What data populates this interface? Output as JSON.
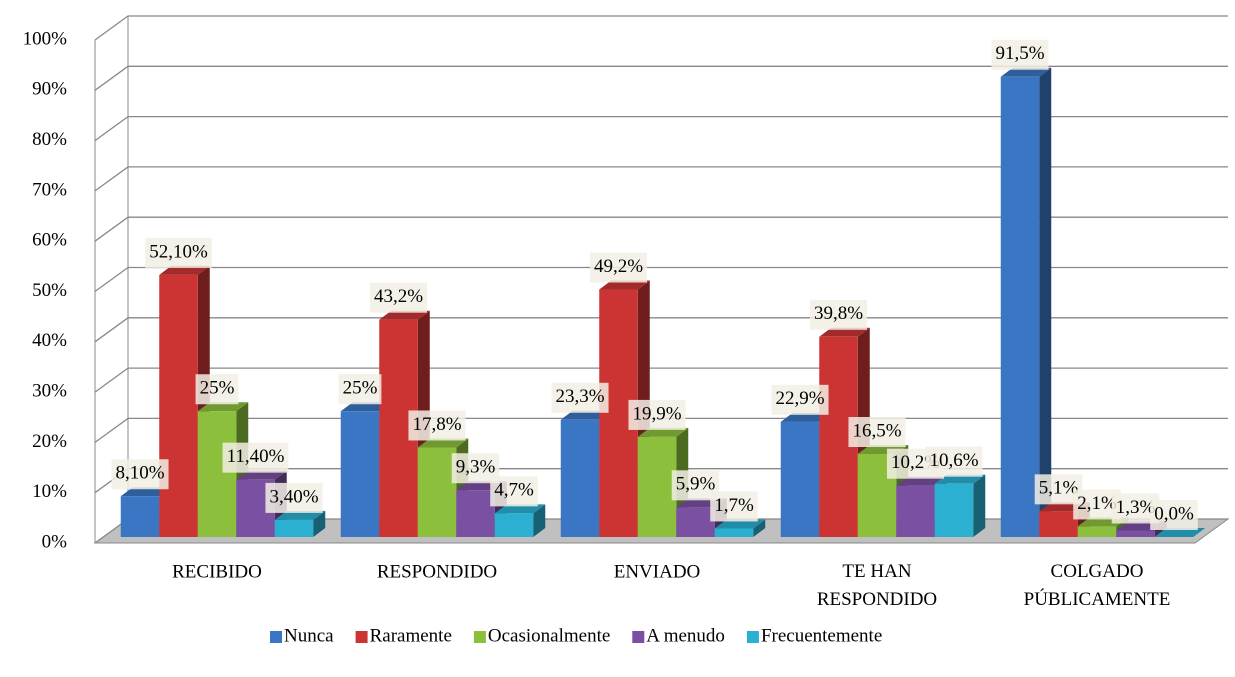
{
  "chart_data": {
    "type": "bar3d",
    "categories": [
      "RECIBIDO",
      "RESPONDIDO",
      "ENVIADO",
      "TE HAN RESPONDIDO",
      "COLGADO PÚBLICAMENTE"
    ],
    "series": [
      {
        "name": "Nunca",
        "color": "#3b76c4",
        "values": [
          8.1,
          25,
          23.3,
          22.9,
          91.5
        ],
        "value_labels": [
          "8,10%",
          "25%",
          "23,3%",
          "22,9%",
          "91,5%"
        ]
      },
      {
        "name": "Raramente",
        "color": "#cc3434",
        "values": [
          52.1,
          43.2,
          49.2,
          39.8,
          5.1
        ],
        "value_labels": [
          "52,10%",
          "43,2%",
          "49,2%",
          "39,8%",
          "5,1%"
        ]
      },
      {
        "name": "Ocasionalmente",
        "color": "#8cc03c",
        "values": [
          25,
          17.8,
          19.9,
          16.5,
          2.1
        ],
        "value_labels": [
          "25%",
          "17,8%",
          "19,9%",
          "16,5%",
          "2,1%"
        ]
      },
      {
        "name": "A menudo",
        "color": "#7a50a2",
        "values": [
          11.4,
          9.3,
          5.9,
          10.2,
          1.3
        ],
        "value_labels": [
          "11,40%",
          "9,3%",
          "5,9%",
          "10,2%",
          "1,3%"
        ]
      },
      {
        "name": "Frecuentemente",
        "color": "#2bb0d2",
        "values": [
          3.4,
          4.7,
          1.7,
          10.6,
          0.0
        ],
        "value_labels": [
          "3,40%",
          "4,7%",
          "1,7%",
          "10,6%",
          "0,0%"
        ]
      }
    ],
    "ylim": [
      0,
      100
    ],
    "yticks": [
      {
        "value": 0,
        "label": "0%"
      },
      {
        "value": 10,
        "label": "10%"
      },
      {
        "value": 20,
        "label": "20%"
      },
      {
        "value": 30,
        "label": "30%"
      },
      {
        "value": 40,
        "label": "40%"
      },
      {
        "value": 50,
        "label": "50%"
      },
      {
        "value": 60,
        "label": "60%"
      },
      {
        "value": 70,
        "label": "70%"
      },
      {
        "value": 80,
        "label": "80%"
      },
      {
        "value": 90,
        "label": "90%"
      },
      {
        "value": 100,
        "label": "100%"
      }
    ],
    "grid": true,
    "legend": "bottom"
  }
}
